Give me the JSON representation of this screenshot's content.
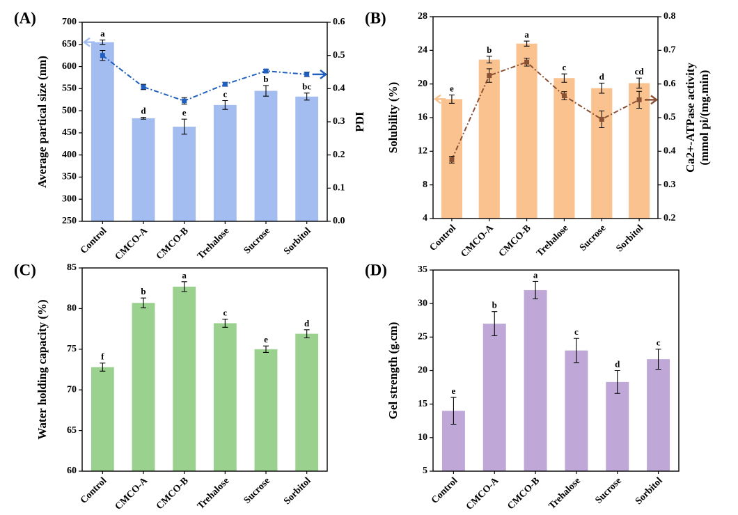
{
  "chart_data": [
    {
      "type": "bar",
      "panel_label": "(A)",
      "ylabel": "Average partical size (nm)",
      "categories": [
        "Control",
        "CMCO-A",
        "CMCO-B",
        "Trehalose",
        "Sucrose",
        "Sorbitol"
      ],
      "values": [
        655,
        483,
        464,
        513,
        545,
        532
      ],
      "errors": [
        5,
        2,
        17,
        10,
        12,
        8
      ],
      "annotations": [
        "a",
        "d",
        "e",
        "c",
        "b",
        "bc"
      ],
      "color": "#a4bdf0",
      "ylim": [
        250,
        700
      ],
      "yticks": [
        250,
        300,
        350,
        400,
        450,
        500,
        550,
        600,
        650,
        700
      ],
      "y2label": "PDI",
      "line_values": [
        0.5,
        0.405,
        0.363,
        0.413,
        0.453,
        0.443
      ],
      "line_errors": [
        0.015,
        0.008,
        0.01,
        0.006,
        0.005,
        0.007
      ],
      "line_color": "#1f5fbf",
      "y2lim": [
        0,
        0.6
      ],
      "y2ticks": [
        {
          "value": 0,
          "label": "0.0"
        },
        0.1,
        0.2,
        0.3,
        0.4,
        0.5,
        0.6
      ]
    },
    {
      "type": "bar",
      "panel_label": "(B)",
      "ylabel": "Solubility (%)",
      "categories": [
        "Control",
        "CMCO-A",
        "CMCO-B",
        "Trehalose",
        "Sucrose",
        "Sorbitol"
      ],
      "values": [
        18.2,
        22.9,
        24.8,
        20.7,
        19.5,
        20.1
      ],
      "errors": [
        0.5,
        0.4,
        0.3,
        0.5,
        0.6,
        0.6
      ],
      "annotations": [
        "e",
        "b",
        "a",
        "c",
        "d",
        "cd"
      ],
      "color": "#f9c28f",
      "ylim": [
        4,
        28
      ],
      "yticks": [
        4,
        8,
        12,
        16,
        20,
        24,
        28
      ],
      "y2label": [
        "Ca2+-ATPase activity",
        "(mmol pi/(mg.min)"
      ],
      "line_values": [
        0.375,
        0.625,
        0.665,
        0.565,
        0.495,
        0.553
      ],
      "line_errors": [
        0.01,
        0.02,
        0.012,
        0.012,
        0.025,
        0.025
      ],
      "line_color": "#8b5134",
      "y2lim": [
        0.2,
        0.8
      ],
      "y2ticks": [
        0.2,
        0.3,
        0.4,
        0.5,
        0.6,
        0.7,
        0.8
      ]
    },
    {
      "type": "bar",
      "panel_label": "(C)",
      "ylabel": "Water holding capacity (%)",
      "categories": [
        "Control",
        "CMCO-A",
        "CMCO-B",
        "Trehalose",
        "Sucrose",
        "Sorbitol"
      ],
      "values": [
        72.8,
        80.7,
        82.7,
        78.2,
        75.0,
        76.9
      ],
      "errors": [
        0.5,
        0.6,
        0.6,
        0.5,
        0.4,
        0.5
      ],
      "annotations": [
        "f",
        "b",
        "a",
        "c",
        "e",
        "d"
      ],
      "color": "#9bd18e",
      "ylim": [
        60,
        85
      ],
      "yticks": [
        60,
        65,
        70,
        75,
        80,
        85
      ]
    },
    {
      "type": "bar",
      "panel_label": "(D)",
      "ylabel": "Gel strength (g.cm)",
      "categories": [
        "Control",
        "CMCO-A",
        "CMCO-B",
        "Trehalose",
        "Sucrose",
        "Sorbitol"
      ],
      "values": [
        14.0,
        27.0,
        32.0,
        23.0,
        18.3,
        21.7
      ],
      "errors": [
        2.0,
        1.8,
        1.3,
        1.8,
        1.7,
        1.5
      ],
      "annotations": [
        "e",
        "b",
        "a",
        "c",
        "d",
        "c"
      ],
      "color": "#bfa8d8",
      "ylim": [
        5,
        35
      ],
      "yticks": [
        5,
        10,
        15,
        20,
        25,
        30,
        35
      ]
    }
  ]
}
